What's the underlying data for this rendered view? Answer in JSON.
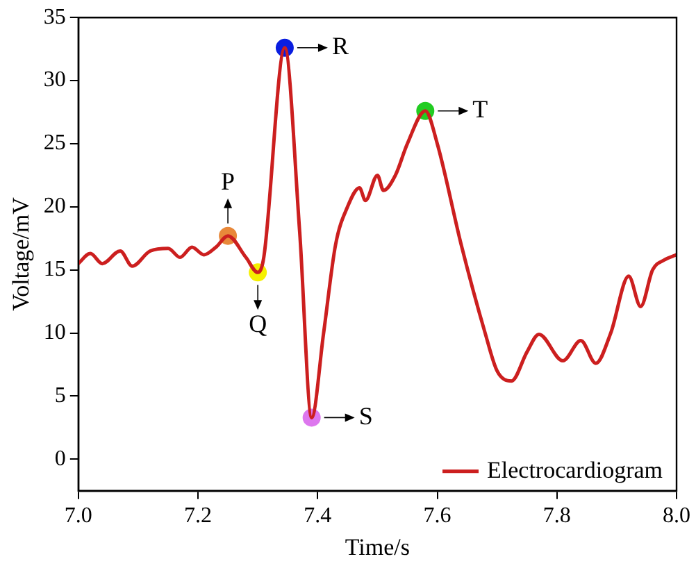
{
  "chart_data": {
    "type": "line",
    "xlabel": "Time/s",
    "ylabel": "Voltage/mV",
    "xlim": [
      7.0,
      8.0
    ],
    "xticks": [
      {
        "value": 7.0,
        "label": "7.0"
      },
      {
        "value": 7.2,
        "label": "7.2"
      },
      {
        "value": 7.4,
        "label": "7.4"
      },
      {
        "value": 7.6,
        "label": "7.6"
      },
      {
        "value": 7.8,
        "label": "7.8"
      },
      {
        "value": 8.0,
        "label": "8.0"
      }
    ],
    "ylim": [
      -2.5,
      35
    ],
    "yticks": [
      0,
      5,
      10,
      15,
      20,
      25,
      30,
      35
    ],
    "grid": false,
    "legend": "bottom right",
    "marker": "none",
    "line_style": "solid",
    "series": [
      {
        "name": "Electrocardiogram",
        "color": "#cc1f1f",
        "x": [
          7.0,
          7.02,
          7.04,
          7.07,
          7.09,
          7.12,
          7.15,
          7.17,
          7.19,
          7.21,
          7.23,
          7.25,
          7.28,
          7.3,
          7.31,
          7.345,
          7.37,
          7.39,
          7.41,
          7.43,
          7.45,
          7.47,
          7.48,
          7.5,
          7.51,
          7.53,
          7.55,
          7.58,
          7.6,
          7.64,
          7.68,
          7.7,
          7.724,
          7.75,
          7.77,
          7.81,
          7.84,
          7.865,
          7.89,
          7.92,
          7.94,
          7.96,
          7.98,
          8.0
        ],
        "values": [
          15.5,
          16.3,
          15.5,
          16.5,
          15.3,
          16.5,
          16.7,
          16.0,
          16.8,
          16.2,
          16.8,
          17.7,
          16.0,
          14.8,
          16.0,
          32.6,
          18.0,
          3.3,
          10.0,
          17.0,
          20.0,
          21.5,
          20.5,
          22.5,
          21.3,
          22.5,
          25.0,
          27.6,
          25.0,
          17.0,
          10.0,
          7.0,
          6.2,
          8.5,
          9.9,
          7.8,
          9.4,
          7.6,
          10.0,
          14.5,
          12.1,
          15.0,
          15.8,
          16.2
        ]
      },
      {
        "type": "scatter",
        "marker": "circle",
        "x": [
          7.25,
          7.3,
          7.345,
          7.39,
          7.58
        ],
        "values": [
          17.7,
          14.8,
          32.6,
          3.3,
          27.6
        ],
        "colors": [
          "#e8883a",
          "#f5f000",
          "#0a1ee0",
          "#dd77ee",
          "#22cc22"
        ]
      }
    ],
    "annotations": [
      {
        "text": "P",
        "x": 7.25,
        "y": 17.7
      },
      {
        "text": "Q",
        "x": 7.3,
        "y": 14.8
      },
      {
        "text": "R",
        "x": 7.345,
        "y": 32.6
      },
      {
        "text": "S",
        "x": 7.39,
        "y": 3.3
      },
      {
        "text": "T",
        "x": 7.58,
        "y": 27.6
      }
    ]
  }
}
